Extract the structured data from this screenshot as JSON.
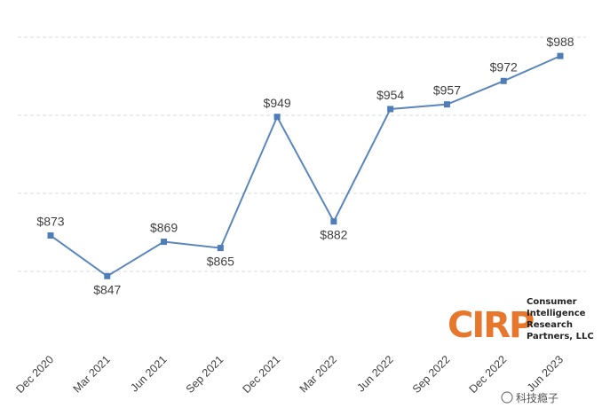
{
  "chart_data": {
    "type": "line",
    "title": "",
    "xlabel": "",
    "ylabel": "",
    "categories": [
      "Dec 2020",
      "Mar 2021",
      "Jun 2021",
      "Sep 2021",
      "Dec 2021",
      "Mar 2022",
      "Jun 2022",
      "Sep 2022",
      "Dec 2022",
      "Jun 2023"
    ],
    "series": [
      {
        "values": [
          873,
          847,
          869,
          865,
          949,
          882,
          954,
          957,
          972,
          988
        ],
        "data_labels": [
          "$873",
          "$847",
          "$869",
          "$865",
          "$949",
          "$882",
          "$954",
          "$957",
          "$972",
          "$988"
        ],
        "color": "#5b86bd"
      }
    ],
    "ylim": [
      800,
      1000
    ],
    "grid": true,
    "legend": "none"
  },
  "logo": {
    "mark": "CIRP",
    "lines": [
      "Consumer",
      "Intelligence",
      "Research",
      "Partners, LLC"
    ]
  },
  "watermark": {
    "text": "科技瘾子"
  }
}
